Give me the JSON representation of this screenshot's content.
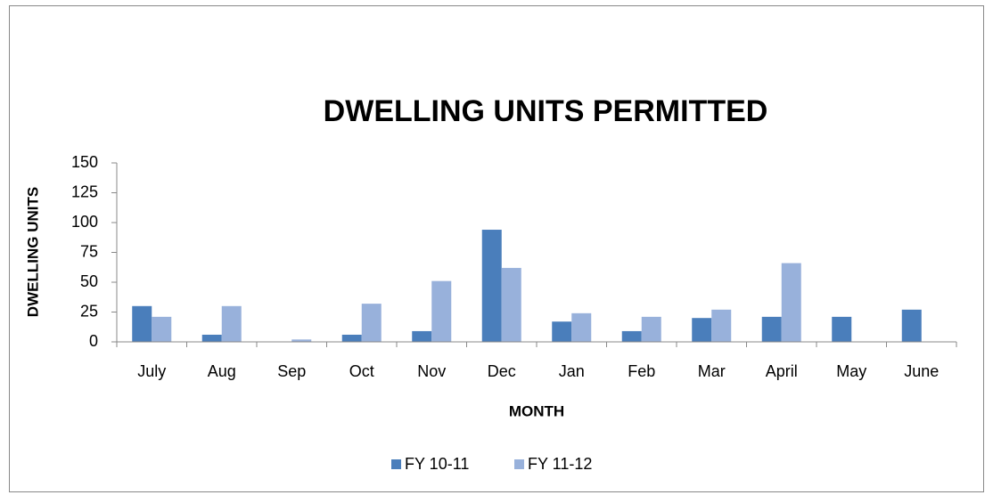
{
  "chart_data": {
    "type": "bar",
    "title": "DWELLING UNITS PERMITTED",
    "x_label": "MONTH",
    "y_label": "DWELLING UNITS",
    "categories": [
      "July",
      "Aug",
      "Sep",
      "Oct",
      "Nov",
      "Dec",
      "Jan",
      "Feb",
      "Mar",
      "April",
      "May",
      "June"
    ],
    "series": [
      {
        "name": "FY 10-11",
        "color": "#4a7ebb",
        "values": [
          30,
          6,
          0,
          6,
          9,
          94,
          17,
          9,
          20,
          21,
          21,
          27
        ]
      },
      {
        "name": "FY 11-12",
        "color": "#98b1db",
        "values": [
          21,
          30,
          2,
          32,
          51,
          62,
          24,
          21,
          27,
          66,
          0,
          0
        ]
      }
    ],
    "ylim": [
      0,
      150
    ],
    "yticks": [
      0,
      25,
      50,
      75,
      100,
      125,
      150
    ],
    "grid": false,
    "legend": "bottom"
  }
}
